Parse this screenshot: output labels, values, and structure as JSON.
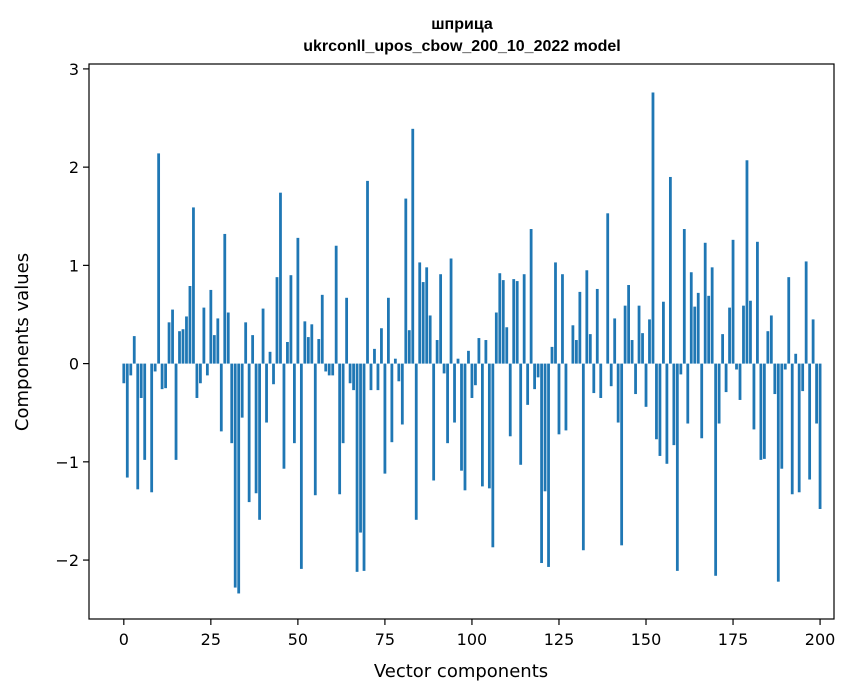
{
  "chart_data": {
    "type": "bar",
    "title": "шприца",
    "subtitle": "ukrconll_upos_cbow_200_10_2022 model",
    "xlabel": "Vector components",
    "ylabel": "Components values",
    "xlim": [
      -10,
      204
    ],
    "ylim": [
      -2.6,
      3.05
    ],
    "xticks": [
      0,
      25,
      50,
      75,
      100,
      125,
      150,
      175,
      200
    ],
    "yticks": [
      -2,
      -1,
      0,
      1,
      2,
      3
    ],
    "xtick_labels": [
      "0",
      "25",
      "50",
      "75",
      "100",
      "125",
      "150",
      "175",
      "200"
    ],
    "ytick_labels": [
      "−2",
      "−1",
      "0",
      "1",
      "2",
      "3"
    ],
    "bar_color": "#1f77b4",
    "grid": false,
    "values": [
      -0.2,
      -1.16,
      -0.12,
      0.28,
      -1.28,
      -0.35,
      -0.98,
      0.0,
      -1.31,
      -0.08,
      2.14,
      -0.26,
      -0.25,
      0.42,
      0.55,
      -0.98,
      0.33,
      0.35,
      0.48,
      0.79,
      1.59,
      -0.35,
      -0.2,
      0.57,
      -0.12,
      0.75,
      0.29,
      0.46,
      -0.69,
      1.32,
      0.52,
      -0.81,
      -2.28,
      -2.34,
      -0.55,
      0.42,
      -1.41,
      0.29,
      -1.32,
      -1.59,
      0.56,
      -0.6,
      0.12,
      -0.21,
      0.88,
      1.74,
      -1.07,
      0.22,
      0.9,
      -0.81,
      1.28,
      -2.09,
      0.43,
      0.27,
      0.4,
      -1.34,
      0.25,
      0.7,
      -0.08,
      -0.12,
      -0.12,
      1.2,
      -1.33,
      -0.81,
      0.67,
      -0.2,
      -0.27,
      -2.12,
      -1.72,
      -2.11,
      1.86,
      -0.27,
      0.15,
      -0.27,
      0.36,
      -1.12,
      0.67,
      -0.8,
      0.05,
      -0.18,
      -0.62,
      1.68,
      0.34,
      2.39,
      -1.59,
      1.03,
      0.83,
      0.98,
      0.49,
      -1.19,
      0.24,
      0.91,
      -0.1,
      -0.81,
      1.07,
      -0.6,
      0.05,
      -1.09,
      -1.29,
      0.13,
      -0.35,
      -0.22,
      0.26,
      -1.25,
      0.24,
      -1.27,
      -1.87,
      0.52,
      0.92,
      0.85,
      0.37,
      -0.74,
      0.86,
      0.84,
      -1.03,
      0.91,
      -0.42,
      1.37,
      -0.26,
      -0.14,
      -2.03,
      -1.3,
      -2.07,
      0.17,
      1.03,
      -0.72,
      0.91,
      -0.68,
      0.0,
      0.39,
      0.24,
      0.73,
      -1.9,
      0.95,
      0.3,
      -0.3,
      0.76,
      -0.35,
      0.0,
      1.53,
      -0.23,
      0.46,
      -0.6,
      -1.85,
      0.59,
      0.8,
      0.24,
      -0.31,
      0.59,
      0.31,
      -0.44,
      0.45,
      2.76,
      -0.77,
      -0.94,
      0.63,
      -1.02,
      1.9,
      -0.83,
      -2.11,
      -0.11,
      1.37,
      -0.61,
      0.93,
      0.58,
      0.72,
      -0.76,
      1.23,
      0.69,
      0.98,
      -2.16,
      -0.61,
      0.3,
      -0.29,
      0.57,
      1.26,
      -0.06,
      -0.37,
      0.59,
      2.07,
      0.64,
      -0.67,
      1.24,
      -0.98,
      -0.97,
      0.33,
      0.49,
      -0.31,
      -2.22,
      -1.07,
      -0.06,
      0.88,
      -1.33,
      0.1,
      -1.31,
      -0.28,
      1.04,
      -1.18,
      0.45,
      -0.61,
      -1.48
    ]
  }
}
